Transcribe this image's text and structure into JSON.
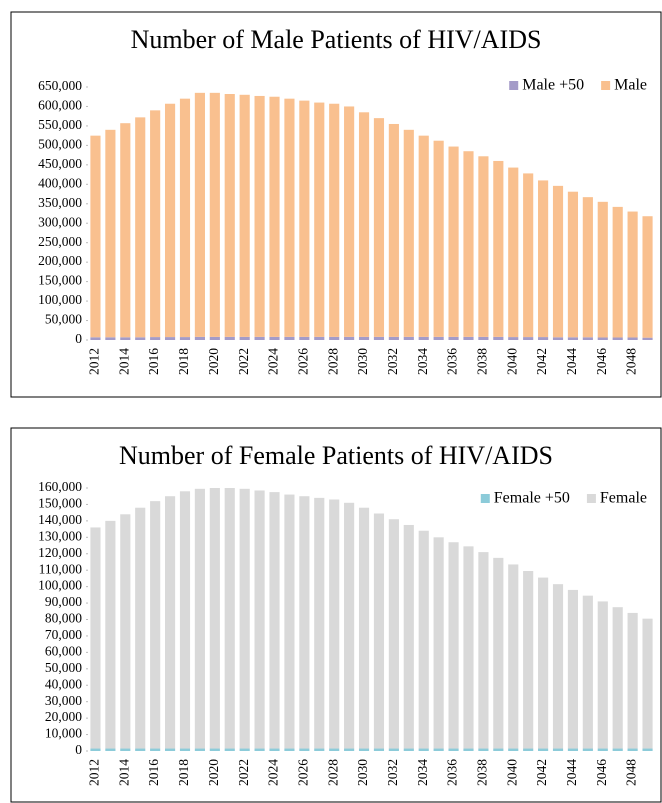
{
  "chart_data": [
    {
      "type": "stacked_bar",
      "title": "Number of Male Patients of HIV/AIDS",
      "categories": [
        "2012",
        null,
        "2014",
        null,
        "2016",
        null,
        "2018",
        null,
        "2020",
        null,
        "2022",
        null,
        "2024",
        null,
        "2026",
        null,
        "2028",
        null,
        "2030",
        null,
        "2032",
        null,
        "2034",
        null,
        "2036",
        null,
        "2038",
        null,
        "2040",
        null,
        "2042",
        null,
        "2044",
        null,
        "2046",
        null,
        "2048",
        null
      ],
      "series": [
        {
          "name": "Male +50",
          "color": "#a49bc8",
          "values": [
            7000,
            7000,
            7000,
            7000,
            7500,
            7500,
            7500,
            8000,
            8000,
            8000,
            8000,
            8000,
            8000,
            8000,
            8000,
            8000,
            8000,
            8000,
            8000,
            8000,
            8000,
            8000,
            8000,
            8000,
            8000,
            8000,
            8000,
            8000,
            7500,
            7500,
            7500,
            7000,
            7000,
            7000,
            6500,
            6500,
            6500,
            6000
          ]
        },
        {
          "name": "Male",
          "color": "#f9c08f",
          "values": [
            518000,
            533000,
            550000,
            565000,
            582500,
            599500,
            612500,
            627000,
            627000,
            624000,
            622000,
            619000,
            617000,
            612000,
            607000,
            602000,
            599000,
            592000,
            577000,
            562000,
            547000,
            532000,
            517000,
            504000,
            489000,
            477000,
            464000,
            452000,
            435500,
            420500,
            402500,
            389000,
            374000,
            360000,
            348500,
            335500,
            323500,
            312000
          ]
        }
      ],
      "ylim": [
        0,
        650000
      ],
      "yticks": [
        0,
        {
          "value": 50000,
          "label": "50,000"
        },
        {
          "value": 100000,
          "label": "100,000"
        },
        {
          "value": 150000,
          "label": "150,000"
        },
        {
          "value": 200000,
          "label": "200,000"
        },
        {
          "value": 250000,
          "label": "250,000"
        },
        {
          "value": 300000,
          "label": "300,000"
        },
        {
          "value": 350000,
          "label": "350,000"
        },
        {
          "value": 400000,
          "label": "400,000"
        },
        {
          "value": 450000,
          "label": "450,000"
        },
        {
          "value": 500000,
          "label": "500,000"
        },
        {
          "value": 550000,
          "label": "550,000"
        },
        {
          "value": 600000,
          "label": "600,000"
        },
        {
          "value": 650000,
          "label": "650,000"
        }
      ],
      "legend": "top-right",
      "grid": false
    },
    {
      "type": "stacked_bar",
      "title": "Number of Female Patients of HIV/AIDS",
      "categories": [
        "2012",
        null,
        "2014",
        null,
        "2016",
        null,
        "2018",
        null,
        "2020",
        null,
        "2022",
        null,
        "2024",
        null,
        "2026",
        null,
        "2028",
        null,
        "2030",
        null,
        "2032",
        null,
        "2034",
        null,
        "2036",
        null,
        "2038",
        null,
        "2040",
        null,
        "2042",
        null,
        "2044",
        null,
        "2046",
        null,
        "2048",
        null
      ],
      "series": [
        {
          "name": "Female +50",
          "color": "#8ccbd9",
          "values": [
            1500,
            1500,
            1500,
            1500,
            1500,
            1500,
            1500,
            1500,
            1500,
            1500,
            1500,
            1500,
            1500,
            1500,
            1500,
            1500,
            1500,
            1500,
            1500,
            1500,
            1500,
            1500,
            1500,
            1500,
            1500,
            1500,
            1500,
            1500,
            1500,
            1500,
            1500,
            1500,
            1500,
            1500,
            1500,
            1500,
            1500,
            1500
          ]
        },
        {
          "name": "Female",
          "color": "#d9d9d9",
          "values": [
            134500,
            138500,
            142500,
            146500,
            150500,
            153500,
            156500,
            158000,
            158500,
            158500,
            158000,
            157000,
            156000,
            154500,
            153500,
            152500,
            151500,
            149500,
            146500,
            143000,
            139500,
            136000,
            132500,
            128500,
            125500,
            123000,
            119500,
            116000,
            112000,
            108000,
            104000,
            100000,
            96500,
            93000,
            89500,
            86000,
            82500,
            79000
          ]
        }
      ],
      "ylim": [
        0,
        160000
      ],
      "yticks": [
        0,
        {
          "value": 10000,
          "label": "10,000"
        },
        {
          "value": 20000,
          "label": "20,000"
        },
        {
          "value": 30000,
          "label": "30,000"
        },
        {
          "value": 40000,
          "label": "40,000"
        },
        {
          "value": 50000,
          "label": "50,000"
        },
        {
          "value": 60000,
          "label": "60,000"
        },
        {
          "value": 70000,
          "label": "70,000"
        },
        {
          "value": 80000,
          "label": "80,000"
        },
        {
          "value": 90000,
          "label": "90,000"
        },
        {
          "value": 100000,
          "label": "100,000"
        },
        {
          "value": 110000,
          "label": "110,000"
        },
        {
          "value": 120000,
          "label": "120,000"
        },
        {
          "value": 130000,
          "label": "130,000"
        },
        {
          "value": 140000,
          "label": "140,000"
        },
        {
          "value": 150000,
          "label": "150,000"
        },
        {
          "value": 160000,
          "label": "160,000"
        }
      ],
      "legend": "top-right",
      "grid": false
    }
  ]
}
